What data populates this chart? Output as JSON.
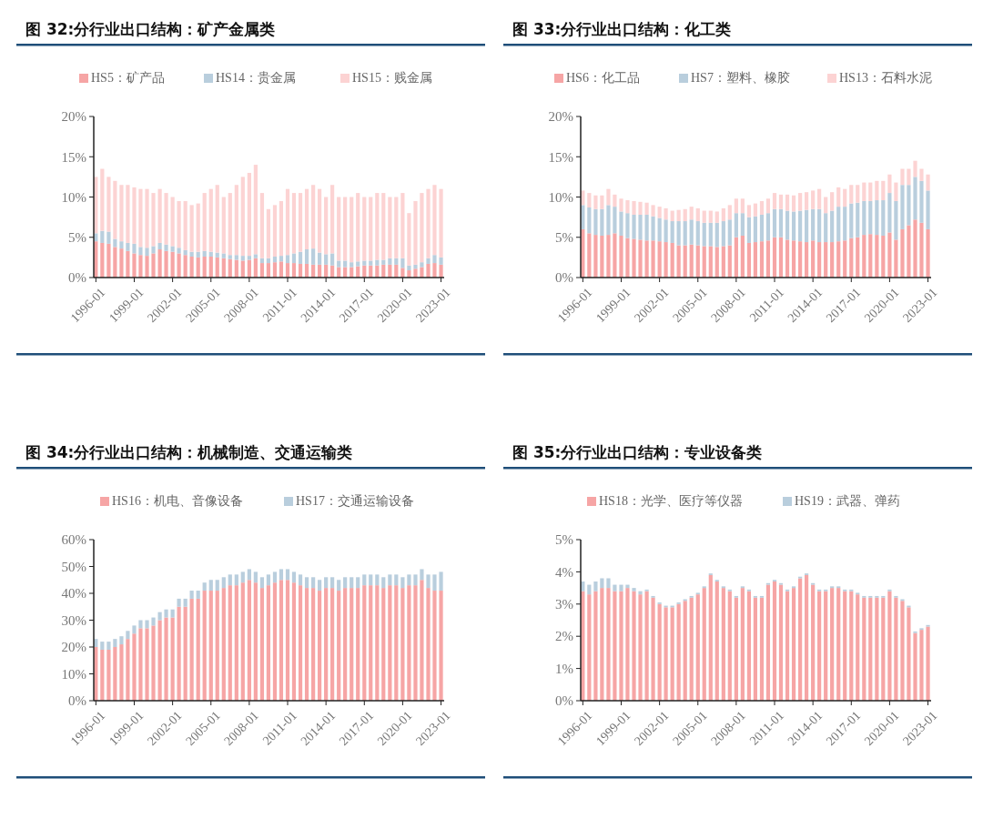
{
  "chart_data": [
    {
      "type": "bar",
      "stacked": true,
      "title": "图 32:分行业出口结构：矿产金属类",
      "legend": "top",
      "grid": false,
      "x": [
        "1996-01",
        "1996-07",
        "1997-01",
        "1997-07",
        "1998-01",
        "1998-07",
        "1999-01",
        "1999-07",
        "2000-01",
        "2000-07",
        "2001-01",
        "2001-07",
        "2002-01",
        "2002-07",
        "2003-01",
        "2003-07",
        "2004-01",
        "2004-07",
        "2005-01",
        "2005-07",
        "2006-01",
        "2006-07",
        "2007-01",
        "2007-07",
        "2008-01",
        "2008-07",
        "2009-01",
        "2009-07",
        "2010-01",
        "2010-07",
        "2011-01",
        "2011-07",
        "2012-01",
        "2012-07",
        "2013-01",
        "2013-07",
        "2014-01",
        "2014-07",
        "2015-01",
        "2015-07",
        "2016-01",
        "2016-07",
        "2017-01",
        "2017-07",
        "2018-01",
        "2018-07",
        "2019-01",
        "2019-07",
        "2020-01",
        "2020-07",
        "2021-01",
        "2021-07",
        "2022-01",
        "2022-07",
        "2023-01"
      ],
      "xlim": [
        "1995-11",
        "2023-04"
      ],
      "xticks": [
        "1996-01",
        "1999-01",
        "2002-01",
        "2005-01",
        "2008-01",
        "2011-01",
        "2014-01",
        "2017-01",
        "2020-01",
        "2023-01"
      ],
      "ylim": [
        0,
        20
      ],
      "yticks": [
        {
          "value": 0,
          "label": "0%"
        },
        {
          "value": 5,
          "label": "5%"
        },
        {
          "value": 10,
          "label": "10%"
        },
        {
          "value": 15,
          "label": "15%"
        },
        {
          "value": 20,
          "label": "20%"
        }
      ],
      "series": [
        {
          "name": "HS5：矿产品",
          "color": "#f6a5a5",
          "values": [
            4.5,
            4.3,
            4.2,
            3.8,
            3.6,
            3.3,
            3.0,
            2.8,
            2.7,
            3.0,
            3.5,
            3.3,
            3.2,
            3.0,
            2.8,
            2.6,
            2.5,
            2.6,
            2.6,
            2.5,
            2.4,
            2.3,
            2.2,
            2.1,
            2.2,
            2.4,
            1.8,
            1.8,
            1.9,
            2.0,
            1.8,
            1.8,
            1.7,
            1.7,
            1.6,
            1.6,
            1.6,
            1.5,
            1.3,
            1.3,
            1.3,
            1.4,
            1.5,
            1.5,
            1.5,
            1.6,
            1.6,
            1.6,
            1.2,
            0.9,
            1.1,
            1.3,
            1.7,
            1.8,
            1.6
          ]
        },
        {
          "name": "HS14：贵金属",
          "color": "#b9cedd",
          "values": [
            1.0,
            1.5,
            1.5,
            1.0,
            0.9,
            1.0,
            1.2,
            1.0,
            1.0,
            0.9,
            0.8,
            0.8,
            0.7,
            0.7,
            0.6,
            0.6,
            0.7,
            0.7,
            0.6,
            0.6,
            0.6,
            0.5,
            0.6,
            0.6,
            0.5,
            0.5,
            0.6,
            0.6,
            0.7,
            0.7,
            1.0,
            1.2,
            1.5,
            1.8,
            2.0,
            1.5,
            1.3,
            1.5,
            0.8,
            0.8,
            0.6,
            0.6,
            0.6,
            0.6,
            0.7,
            0.6,
            0.8,
            0.8,
            1.2,
            0.6,
            0.5,
            0.6,
            0.7,
            1.0,
            0.9
          ]
        },
        {
          "name": "HS15：贱金属",
          "color": "#fcd3d3",
          "values": [
            7.0,
            7.7,
            6.8,
            7.2,
            7.0,
            7.2,
            7.0,
            7.2,
            7.3,
            6.6,
            6.7,
            6.4,
            6.1,
            5.8,
            6.1,
            5.8,
            6.0,
            7.2,
            7.8,
            8.4,
            7.0,
            7.7,
            8.7,
            9.8,
            10.3,
            11.1,
            8.1,
            6.1,
            6.4,
            6.8,
            8.2,
            7.5,
            7.3,
            7.5,
            7.9,
            7.9,
            7.1,
            8.5,
            7.9,
            7.9,
            8.1,
            8.5,
            7.9,
            7.9,
            8.3,
            8.3,
            7.6,
            7.6,
            8.1,
            6.5,
            7.9,
            8.6,
            8.6,
            8.7,
            8.5
          ]
        }
      ]
    },
    {
      "type": "bar",
      "stacked": true,
      "title": "图 33:分行业出口结构：化工类",
      "legend": "top",
      "grid": false,
      "x": [
        "1996-01",
        "1996-07",
        "1997-01",
        "1997-07",
        "1998-01",
        "1998-07",
        "1999-01",
        "1999-07",
        "2000-01",
        "2000-07",
        "2001-01",
        "2001-07",
        "2002-01",
        "2002-07",
        "2003-01",
        "2003-07",
        "2004-01",
        "2004-07",
        "2005-01",
        "2005-07",
        "2006-01",
        "2006-07",
        "2007-01",
        "2007-07",
        "2008-01",
        "2008-07",
        "2009-01",
        "2009-07",
        "2010-01",
        "2010-07",
        "2011-01",
        "2011-07",
        "2012-01",
        "2012-07",
        "2013-01",
        "2013-07",
        "2014-01",
        "2014-07",
        "2015-01",
        "2015-07",
        "2016-01",
        "2016-07",
        "2017-01",
        "2017-07",
        "2018-01",
        "2018-07",
        "2019-01",
        "2019-07",
        "2020-01",
        "2020-07",
        "2021-01",
        "2021-07",
        "2022-01",
        "2022-07",
        "2023-01"
      ],
      "xlim": [
        "1995-11",
        "2023-04"
      ],
      "xticks": [
        "1996-01",
        "1999-01",
        "2002-01",
        "2005-01",
        "2008-01",
        "2011-01",
        "2014-01",
        "2017-01",
        "2020-01",
        "2023-01"
      ],
      "ylim": [
        0,
        20
      ],
      "yticks": [
        {
          "value": 0,
          "label": "0%"
        },
        {
          "value": 5,
          "label": "5%"
        },
        {
          "value": 10,
          "label": "10%"
        },
        {
          "value": 15,
          "label": "15%"
        },
        {
          "value": 20,
          "label": "20%"
        }
      ],
      "series": [
        {
          "name": "HS6：化工品",
          "color": "#f6a5a5",
          "values": [
            6.0,
            5.5,
            5.3,
            5.2,
            5.3,
            5.5,
            5.2,
            4.9,
            4.8,
            4.7,
            4.6,
            4.6,
            4.5,
            4.4,
            4.3,
            4.0,
            4.0,
            4.1,
            4.0,
            3.9,
            3.9,
            3.8,
            3.9,
            4.0,
            5.0,
            5.2,
            4.3,
            4.4,
            4.5,
            4.6,
            5.0,
            5.0,
            4.7,
            4.6,
            4.5,
            4.4,
            4.6,
            4.4,
            4.4,
            4.4,
            4.5,
            4.6,
            4.9,
            5.0,
            5.3,
            5.4,
            5.3,
            5.2,
            5.6,
            4.7,
            6.0,
            6.5,
            7.2,
            6.8,
            6.0
          ]
        },
        {
          "name": "HS7：塑料、橡胶",
          "color": "#b9cedd",
          "values": [
            3.0,
            3.2,
            3.2,
            3.3,
            3.7,
            3.3,
            3.0,
            3.1,
            3.0,
            3.1,
            3.2,
            3.0,
            2.9,
            2.8,
            2.7,
            3.0,
            3.0,
            3.1,
            3.0,
            2.9,
            2.9,
            3.0,
            3.1,
            3.2,
            3.0,
            2.8,
            3.2,
            3.2,
            3.3,
            3.4,
            3.5,
            3.5,
            3.6,
            3.6,
            3.8,
            4.0,
            3.9,
            4.1,
            3.6,
            3.9,
            4.3,
            4.2,
            4.3,
            4.3,
            4.2,
            4.1,
            4.3,
            4.4,
            4.9,
            4.8,
            5.5,
            5.0,
            5.3,
            5.2,
            4.8
          ]
        },
        {
          "name": "HS13：石料水泥",
          "color": "#fcd3d3",
          "values": [
            1.8,
            1.8,
            1.7,
            1.7,
            2.0,
            1.5,
            1.6,
            1.6,
            1.7,
            1.6,
            1.5,
            1.4,
            1.4,
            1.4,
            1.3,
            1.4,
            1.5,
            1.6,
            1.6,
            1.5,
            1.5,
            1.4,
            1.6,
            1.8,
            1.8,
            1.8,
            1.5,
            1.6,
            1.7,
            1.8,
            2.0,
            1.8,
            2.0,
            2.0,
            2.2,
            2.2,
            2.3,
            2.5,
            2.0,
            2.3,
            2.4,
            2.2,
            2.3,
            2.2,
            2.3,
            2.3,
            2.4,
            2.4,
            2.3,
            2.3,
            2.0,
            2.0,
            2.0,
            1.5,
            2.0
          ]
        }
      ]
    },
    {
      "type": "bar",
      "stacked": true,
      "title": "图 34:分行业出口结构：机械制造、交通运输类",
      "legend": "top",
      "grid": false,
      "x": [
        "1996-01",
        "1996-07",
        "1997-01",
        "1997-07",
        "1998-01",
        "1998-07",
        "1999-01",
        "1999-07",
        "2000-01",
        "2000-07",
        "2001-01",
        "2001-07",
        "2002-01",
        "2002-07",
        "2003-01",
        "2003-07",
        "2004-01",
        "2004-07",
        "2005-01",
        "2005-07",
        "2006-01",
        "2006-07",
        "2007-01",
        "2007-07",
        "2008-01",
        "2008-07",
        "2009-01",
        "2009-07",
        "2010-01",
        "2010-07",
        "2011-01",
        "2011-07",
        "2012-01",
        "2012-07",
        "2013-01",
        "2013-07",
        "2014-01",
        "2014-07",
        "2015-01",
        "2015-07",
        "2016-01",
        "2016-07",
        "2017-01",
        "2017-07",
        "2018-01",
        "2018-07",
        "2019-01",
        "2019-07",
        "2020-01",
        "2020-07",
        "2021-01",
        "2021-07",
        "2022-01",
        "2022-07",
        "2023-01"
      ],
      "xlim": [
        "1995-11",
        "2023-04"
      ],
      "xticks": [
        "1996-01",
        "1999-01",
        "2002-01",
        "2005-01",
        "2008-01",
        "2011-01",
        "2014-01",
        "2017-01",
        "2020-01",
        "2023-01"
      ],
      "ylim": [
        0,
        60
      ],
      "yticks": [
        {
          "value": 0,
          "label": "0%"
        },
        {
          "value": 10,
          "label": "10%"
        },
        {
          "value": 20,
          "label": "20%"
        },
        {
          "value": 30,
          "label": "30%"
        },
        {
          "value": 40,
          "label": "40%"
        },
        {
          "value": 50,
          "label": "50%"
        },
        {
          "value": 60,
          "label": "60%"
        }
      ],
      "series": [
        {
          "name": "HS16：机电、音像设备",
          "color": "#f6a5a5",
          "values": [
            20,
            19,
            19,
            20,
            21,
            23,
            25,
            27,
            27,
            28,
            30,
            31,
            31,
            35,
            35,
            38,
            38,
            41,
            41,
            41,
            42,
            43,
            43,
            44,
            45,
            44,
            42,
            43,
            44,
            45,
            45,
            44,
            43,
            42,
            42,
            41,
            42,
            42,
            41,
            42,
            42,
            42,
            43,
            43,
            43,
            42,
            43,
            43,
            42,
            43,
            43,
            45,
            42,
            41,
            41
          ]
        },
        {
          "name": "HS17：交通运输设备",
          "color": "#b9cedd",
          "values": [
            3,
            3,
            3,
            3,
            3,
            3,
            3,
            3,
            3,
            3,
            3,
            3,
            3,
            3,
            3,
            3,
            3,
            3,
            4,
            4,
            4,
            4,
            4,
            4,
            4,
            4,
            4,
            4,
            4,
            4,
            4,
            4,
            4,
            4,
            4,
            4,
            4,
            4,
            4,
            4,
            4,
            4,
            4,
            4,
            4,
            4,
            4,
            4,
            4,
            4,
            4,
            4,
            5,
            6,
            7
          ]
        }
      ]
    },
    {
      "type": "bar",
      "stacked": true,
      "title": "图 35:分行业出口结构：专业设备类",
      "legend": "top",
      "grid": false,
      "x": [
        "1996-01",
        "1996-07",
        "1997-01",
        "1997-07",
        "1998-01",
        "1998-07",
        "1999-01",
        "1999-07",
        "2000-01",
        "2000-07",
        "2001-01",
        "2001-07",
        "2002-01",
        "2002-07",
        "2003-01",
        "2003-07",
        "2004-01",
        "2004-07",
        "2005-01",
        "2005-07",
        "2006-01",
        "2006-07",
        "2007-01",
        "2007-07",
        "2008-01",
        "2008-07",
        "2009-01",
        "2009-07",
        "2010-01",
        "2010-07",
        "2011-01",
        "2011-07",
        "2012-01",
        "2012-07",
        "2013-01",
        "2013-07",
        "2014-01",
        "2014-07",
        "2015-01",
        "2015-07",
        "2016-01",
        "2016-07",
        "2017-01",
        "2017-07",
        "2018-01",
        "2018-07",
        "2019-01",
        "2019-07",
        "2020-01",
        "2020-07",
        "2021-01",
        "2021-07",
        "2022-01",
        "2022-07",
        "2023-01"
      ],
      "xlim": [
        "1995-11",
        "2023-04"
      ],
      "xticks": [
        "1996-01",
        "1999-01",
        "2002-01",
        "2005-01",
        "2008-01",
        "2011-01",
        "2014-01",
        "2017-01",
        "2020-01",
        "2023-01"
      ],
      "ylim": [
        0,
        5
      ],
      "yticks": [
        {
          "value": 0,
          "label": "0%"
        },
        {
          "value": 1,
          "label": "1%"
        },
        {
          "value": 2,
          "label": "2%"
        },
        {
          "value": 3,
          "label": "3%"
        },
        {
          "value": 4,
          "label": "4%"
        },
        {
          "value": 5,
          "label": "5%"
        }
      ],
      "series": [
        {
          "name": "HS18：光学、医疗等仪器",
          "color": "#f6a5a5",
          "values": [
            3.4,
            3.3,
            3.4,
            3.5,
            3.5,
            3.4,
            3.4,
            3.5,
            3.4,
            3.3,
            3.4,
            3.2,
            3.0,
            2.9,
            2.9,
            3.0,
            3.1,
            3.2,
            3.3,
            3.5,
            3.9,
            3.7,
            3.5,
            3.4,
            3.2,
            3.5,
            3.4,
            3.2,
            3.2,
            3.6,
            3.7,
            3.6,
            3.4,
            3.5,
            3.8,
            3.9,
            3.6,
            3.4,
            3.4,
            3.5,
            3.5,
            3.4,
            3.4,
            3.3,
            3.2,
            3.2,
            3.2,
            3.2,
            3.4,
            3.2,
            3.1,
            2.9,
            2.1,
            2.2,
            2.3
          ]
        },
        {
          "name": "HS19：武器、弹药",
          "color": "#b9cedd",
          "values": [
            0.3,
            0.3,
            0.3,
            0.3,
            0.3,
            0.2,
            0.2,
            0.1,
            0.1,
            0.1,
            0.05,
            0.05,
            0.05,
            0.05,
            0.05,
            0.05,
            0.05,
            0.05,
            0.05,
            0.05,
            0.05,
            0.05,
            0.05,
            0.05,
            0.05,
            0.05,
            0.05,
            0.05,
            0.05,
            0.05,
            0.05,
            0.05,
            0.05,
            0.05,
            0.05,
            0.05,
            0.05,
            0.05,
            0.05,
            0.05,
            0.05,
            0.05,
            0.05,
            0.05,
            0.05,
            0.05,
            0.05,
            0.05,
            0.05,
            0.05,
            0.05,
            0.05,
            0.05,
            0.05,
            0.05
          ]
        }
      ]
    }
  ]
}
